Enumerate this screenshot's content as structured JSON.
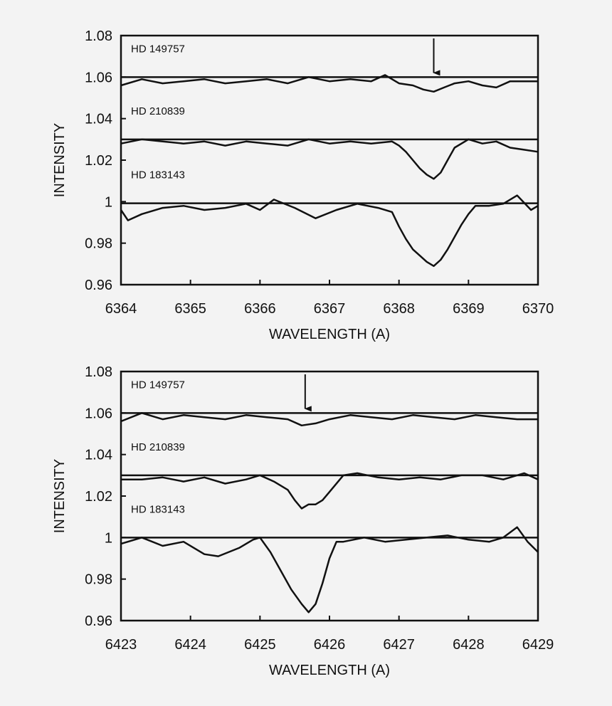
{
  "chart_data": [
    {
      "type": "line",
      "xlabel": "WAVELENGTH (A)",
      "ylabel": "INTENSITY",
      "xlim": [
        6364,
        6370
      ],
      "ylim": [
        0.96,
        1.08
      ],
      "xticks": [
        "6364",
        "6365",
        "6366",
        "6367",
        "6368",
        "6369",
        "6370"
      ],
      "yticks": [
        "0.96",
        "0.98",
        "1",
        "1.02",
        "1.04",
        "1.06",
        "1.08"
      ],
      "grid": false,
      "arrow_x": 6368.5,
      "series": [
        {
          "name": "HD 149757",
          "continuum": 1.06,
          "x": [
            6364,
            6364.3,
            6364.6,
            6364.9,
            6365.2,
            6365.5,
            6365.8,
            6366.1,
            6366.4,
            6366.7,
            6367.0,
            6367.3,
            6367.6,
            6367.8,
            6368.0,
            6368.2,
            6368.35,
            6368.5,
            6368.65,
            6368.8,
            6369.0,
            6369.2,
            6369.4,
            6369.6,
            6369.8,
            6370
          ],
          "y": [
            1.056,
            1.059,
            1.057,
            1.058,
            1.059,
            1.057,
            1.058,
            1.059,
            1.057,
            1.06,
            1.058,
            1.059,
            1.058,
            1.061,
            1.057,
            1.056,
            1.054,
            1.053,
            1.055,
            1.057,
            1.058,
            1.056,
            1.055,
            1.058,
            1.058,
            1.058
          ]
        },
        {
          "name": "HD 210839",
          "continuum": 1.03,
          "x": [
            6364,
            6364.3,
            6364.6,
            6364.9,
            6365.2,
            6365.5,
            6365.8,
            6366.1,
            6366.4,
            6366.7,
            6367.0,
            6367.3,
            6367.6,
            6367.9,
            6368.0,
            6368.1,
            6368.2,
            6368.3,
            6368.4,
            6368.5,
            6368.6,
            6368.7,
            6368.8,
            6369.0,
            6369.2,
            6369.4,
            6369.6,
            6369.8,
            6370
          ],
          "y": [
            1.028,
            1.03,
            1.029,
            1.028,
            1.029,
            1.027,
            1.029,
            1.028,
            1.027,
            1.03,
            1.028,
            1.029,
            1.028,
            1.029,
            1.027,
            1.024,
            1.02,
            1.016,
            1.013,
            1.011,
            1.014,
            1.02,
            1.026,
            1.03,
            1.028,
            1.029,
            1.026,
            1.025,
            1.024
          ]
        },
        {
          "name": "HD 183143",
          "continuum": 0.9992,
          "x": [
            6364,
            6364.1,
            6364.3,
            6364.6,
            6364.9,
            6365.2,
            6365.5,
            6365.8,
            6366.0,
            6366.2,
            6366.5,
            6366.8,
            6367.1,
            6367.4,
            6367.7,
            6367.9,
            6368.0,
            6368.1,
            6368.2,
            6368.3,
            6368.4,
            6368.5,
            6368.6,
            6368.7,
            6368.8,
            6368.9,
            6369.0,
            6369.1,
            6369.3,
            6369.5,
            6369.7,
            6369.9,
            6370
          ],
          "y": [
            0.996,
            0.991,
            0.994,
            0.997,
            0.998,
            0.996,
            0.997,
            0.999,
            0.996,
            1.001,
            0.997,
            0.992,
            0.996,
            0.999,
            0.997,
            0.995,
            0.988,
            0.982,
            0.977,
            0.974,
            0.971,
            0.969,
            0.972,
            0.977,
            0.983,
            0.989,
            0.994,
            0.998,
            0.998,
            0.999,
            1.003,
            0.996,
            0.998
          ]
        }
      ]
    },
    {
      "type": "line",
      "xlabel": "WAVELENGTH (A)",
      "ylabel": "INTENSITY",
      "xlim": [
        6423,
        6429
      ],
      "ylim": [
        0.96,
        1.08
      ],
      "xticks": [
        "6423",
        "6424",
        "6425",
        "6426",
        "6427",
        "6428",
        "6429"
      ],
      "yticks": [
        "0.96",
        "0.98",
        "1",
        "1.02",
        "1.04",
        "1.06",
        "1.08"
      ],
      "grid": false,
      "arrow_x": 6425.65,
      "series": [
        {
          "name": "HD 149757",
          "continuum": 1.06,
          "x": [
            6423,
            6423.3,
            6423.6,
            6423.9,
            6424.2,
            6424.5,
            6424.8,
            6425.1,
            6425.4,
            6425.6,
            6425.8,
            6426.0,
            6426.3,
            6426.6,
            6426.9,
            6427.2,
            6427.5,
            6427.8,
            6428.1,
            6428.4,
            6428.7,
            6429
          ],
          "y": [
            1.056,
            1.06,
            1.057,
            1.059,
            1.058,
            1.057,
            1.059,
            1.058,
            1.057,
            1.054,
            1.055,
            1.057,
            1.059,
            1.058,
            1.057,
            1.059,
            1.058,
            1.057,
            1.059,
            1.058,
            1.057,
            1.057
          ]
        },
        {
          "name": "HD 210839",
          "continuum": 1.03,
          "x": [
            6423,
            6423.3,
            6423.6,
            6423.9,
            6424.2,
            6424.5,
            6424.8,
            6425.0,
            6425.2,
            6425.4,
            6425.5,
            6425.6,
            6425.7,
            6425.8,
            6425.9,
            6426.0,
            6426.2,
            6426.4,
            6426.7,
            6427.0,
            6427.3,
            6427.6,
            6427.9,
            6428.2,
            6428.5,
            6428.8,
            6429
          ],
          "y": [
            1.028,
            1.028,
            1.029,
            1.027,
            1.029,
            1.026,
            1.028,
            1.03,
            1.027,
            1.023,
            1.018,
            1.014,
            1.016,
            1.016,
            1.018,
            1.022,
            1.03,
            1.031,
            1.029,
            1.028,
            1.029,
            1.028,
            1.03,
            1.03,
            1.028,
            1.031,
            1.028
          ]
        },
        {
          "name": "HD 183143",
          "continuum": 1.0,
          "x": [
            6423,
            6423.3,
            6423.6,
            6423.9,
            6424.2,
            6424.4,
            6424.7,
            6424.9,
            6425.0,
            6425.15,
            6425.3,
            6425.45,
            6425.6,
            6425.7,
            6425.8,
            6425.9,
            6426.0,
            6426.1,
            6426.2,
            6426.5,
            6426.8,
            6427.1,
            6427.4,
            6427.7,
            6428.0,
            6428.3,
            6428.5,
            6428.7,
            6428.85,
            6429
          ],
          "y": [
            0.997,
            1.0,
            0.996,
            0.998,
            0.992,
            0.991,
            0.995,
            0.999,
            1.0,
            0.993,
            0.984,
            0.975,
            0.968,
            0.964,
            0.968,
            0.978,
            0.99,
            0.998,
            0.998,
            1.0,
            0.998,
            0.999,
            1.0,
            1.001,
            0.999,
            0.998,
            1.0,
            1.005,
            0.998,
            0.993
          ]
        }
      ]
    }
  ]
}
